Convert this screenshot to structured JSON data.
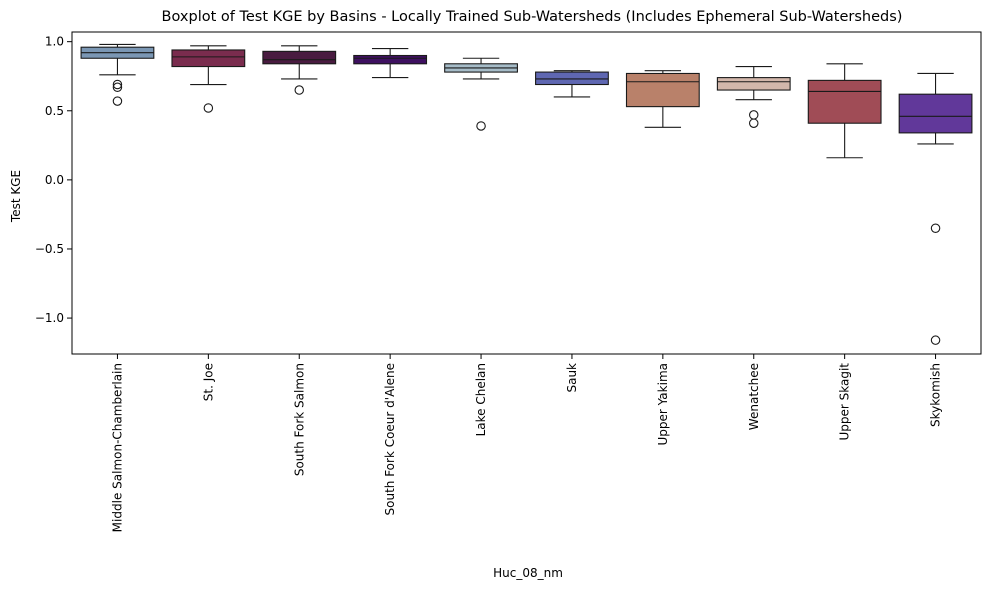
{
  "chart_data": {
    "type": "boxplot",
    "title": "Boxplot of Test KGE by Basins - Locally Trained Sub-Watersheds (Includes Ephemeral Sub-Watersheds)",
    "xlabel": "Huc_08_nm",
    "ylabel": "Test KGE",
    "ylim": [
      -1.26,
      1.07
    ],
    "yticks": [
      -1.0,
      -0.5,
      0.0,
      0.5,
      1.0
    ],
    "ytick_labels": [
      "−1.0",
      "−0.5",
      "0.0",
      "0.5",
      "1.0"
    ],
    "grid": false,
    "categories": [
      "Middle Salmon-Chamberlain",
      "St. Joe",
      "South Fork Salmon",
      "South Fork Coeur d'Alene",
      "Lake Chelan",
      "Sauk",
      "Upper Yakima",
      "Wenatchee",
      "Upper Skagit",
      "Skykomish"
    ],
    "boxes": [
      {
        "whisker_low": 0.76,
        "q1": 0.88,
        "median": 0.92,
        "q3": 0.96,
        "whisker_high": 0.98,
        "outliers": [
          0.69,
          0.67,
          0.57
        ],
        "color": "#7b97b4"
      },
      {
        "whisker_low": 0.69,
        "q1": 0.82,
        "median": 0.89,
        "q3": 0.94,
        "whisker_high": 0.97,
        "outliers": [
          0.52
        ],
        "color": "#7a2c4e"
      },
      {
        "whisker_low": 0.73,
        "q1": 0.84,
        "median": 0.87,
        "q3": 0.93,
        "whisker_high": 0.97,
        "outliers": [
          0.65
        ],
        "color": "#491b40"
      },
      {
        "whisker_low": 0.74,
        "q1": 0.84,
        "median": 0.88,
        "q3": 0.9,
        "whisker_high": 0.95,
        "outliers": [],
        "color": "#3e1060"
      },
      {
        "whisker_low": 0.73,
        "q1": 0.78,
        "median": 0.81,
        "q3": 0.84,
        "whisker_high": 0.88,
        "outliers": [
          0.39
        ],
        "color": "#a6bcc8"
      },
      {
        "whisker_low": 0.6,
        "q1": 0.69,
        "median": 0.73,
        "q3": 0.78,
        "whisker_high": 0.79,
        "outliers": [],
        "color": "#5f67b2"
      },
      {
        "whisker_low": 0.38,
        "q1": 0.53,
        "median": 0.71,
        "q3": 0.77,
        "whisker_high": 0.79,
        "outliers": [],
        "color": "#b9816a"
      },
      {
        "whisker_low": 0.58,
        "q1": 0.65,
        "median": 0.71,
        "q3": 0.74,
        "whisker_high": 0.82,
        "outliers": [
          0.47,
          0.41
        ],
        "color": "#d2b7ab"
      },
      {
        "whisker_low": 0.16,
        "q1": 0.41,
        "median": 0.64,
        "q3": 0.72,
        "whisker_high": 0.84,
        "outliers": [],
        "color": "#a04c56"
      },
      {
        "whisker_low": 0.26,
        "q1": 0.34,
        "median": 0.46,
        "q3": 0.62,
        "whisker_high": 0.77,
        "outliers": [
          -0.35,
          -1.16
        ],
        "color": "#61389a"
      }
    ]
  }
}
